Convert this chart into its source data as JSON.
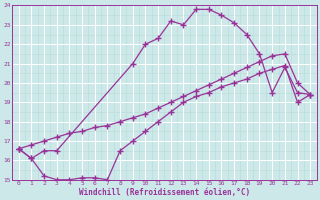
{
  "xlabel": "Windchill (Refroidissement éolien,°C)",
  "xlim": [
    -0.5,
    23.5
  ],
  "ylim": [
    15,
    24
  ],
  "xticks": [
    0,
    1,
    2,
    3,
    4,
    5,
    6,
    7,
    8,
    9,
    10,
    11,
    12,
    13,
    14,
    15,
    16,
    17,
    18,
    19,
    20,
    21,
    22,
    23
  ],
  "yticks": [
    15,
    16,
    17,
    18,
    19,
    20,
    21,
    22,
    23,
    24
  ],
  "bg_color": "#cce8e8",
  "line_color": "#993399",
  "grid_major_color": "#aabbbb",
  "grid_minor_color": "#bbdddd",
  "line1_x": [
    0,
    1,
    2,
    3,
    9,
    10,
    11,
    12,
    13,
    14,
    15,
    16,
    17,
    18,
    19,
    20,
    21,
    22,
    23
  ],
  "line1_y": [
    16.6,
    16.1,
    16.5,
    16.5,
    21.0,
    22.0,
    22.3,
    23.2,
    23.0,
    23.8,
    23.8,
    23.5,
    23.1,
    22.5,
    21.5,
    19.5,
    20.8,
    19.5,
    19.4
  ],
  "line2_x": [
    0,
    1,
    2,
    3,
    4,
    5,
    6,
    7,
    8,
    9,
    10,
    11,
    12,
    13,
    14,
    15,
    16,
    17,
    18,
    19,
    20,
    21,
    22,
    23
  ],
  "line2_y": [
    16.6,
    16.1,
    15.2,
    15.0,
    15.0,
    15.1,
    15.1,
    15.0,
    16.5,
    17.0,
    17.5,
    18.0,
    18.5,
    19.0,
    19.3,
    19.5,
    19.8,
    20.0,
    20.2,
    20.5,
    20.7,
    20.9,
    19.0,
    19.4
  ],
  "line3_x": [
    0,
    1,
    2,
    3,
    4,
    5,
    6,
    7,
    8,
    9,
    10,
    11,
    12,
    13,
    14,
    15,
    16,
    17,
    18,
    19,
    20,
    21,
    22,
    23
  ],
  "line3_y": [
    16.6,
    16.8,
    17.0,
    17.2,
    17.4,
    17.5,
    17.7,
    17.8,
    18.0,
    18.2,
    18.4,
    18.7,
    19.0,
    19.3,
    19.6,
    19.9,
    20.2,
    20.5,
    20.8,
    21.1,
    21.4,
    21.5,
    20.0,
    19.4
  ],
  "marker": "+",
  "markersize": 4,
  "linewidth": 0.9
}
